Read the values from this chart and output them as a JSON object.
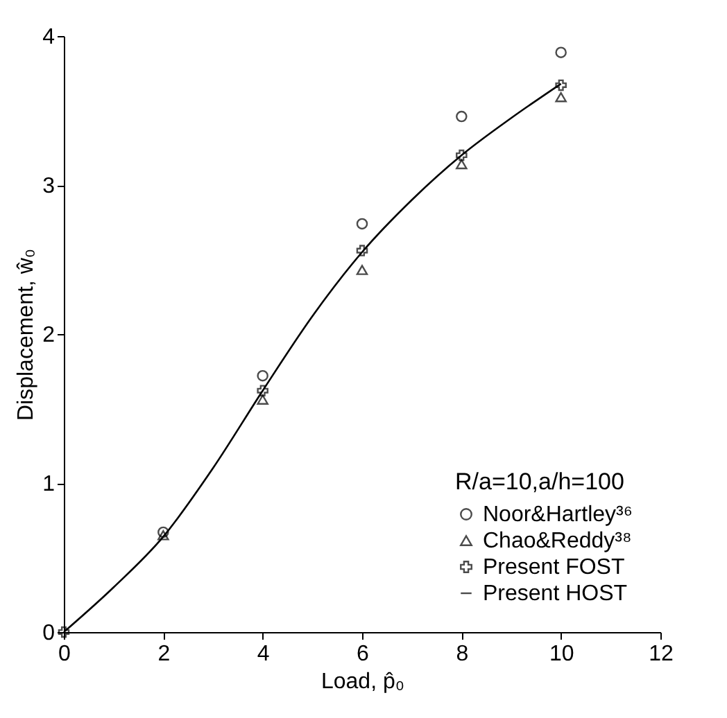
{
  "chart_data": {
    "type": "scatter",
    "xlabel": "Load, p̂₀",
    "ylabel": "Displacement, ŵ₀",
    "legend_title": "R/a=10,a/h=100",
    "legend": "bottom right",
    "grid": false,
    "xlim": [
      0,
      12
    ],
    "xticks": [
      0,
      2,
      4,
      6,
      8,
      10,
      12
    ],
    "ylim": [
      0,
      4
    ],
    "yticks": [
      0,
      1,
      2,
      3,
      4
    ],
    "series": [
      {
        "name": "Noor&Hartley³⁶",
        "marker": "circle",
        "color": "#000000",
        "x": [
          2,
          4,
          6,
          8,
          10
        ],
        "values": [
          0.67,
          1.72,
          2.74,
          3.46,
          3.89
        ]
      },
      {
        "name": "Chao&Reddy³⁸",
        "marker": "triangle",
        "color": "#000000",
        "x": [
          2,
          4,
          6,
          8,
          10
        ],
        "values": [
          0.65,
          1.56,
          2.43,
          3.14,
          3.59
        ]
      },
      {
        "name": "Present FOST",
        "marker": "cross",
        "color": "#000000",
        "x": [
          0,
          4,
          6,
          8,
          10
        ],
        "values": [
          0,
          1.62,
          2.56,
          3.2,
          3.67
        ]
      },
      {
        "name": "Present HOST",
        "type": "line",
        "marker": "none",
        "line_style": "solid",
        "color": "#000000",
        "x": [
          0,
          1,
          2,
          3,
          4,
          5,
          6,
          7,
          8,
          9,
          10
        ],
        "values": [
          0,
          0.3,
          0.64,
          1.1,
          1.62,
          2.12,
          2.55,
          2.9,
          3.2,
          3.45,
          3.68
        ]
      }
    ]
  }
}
